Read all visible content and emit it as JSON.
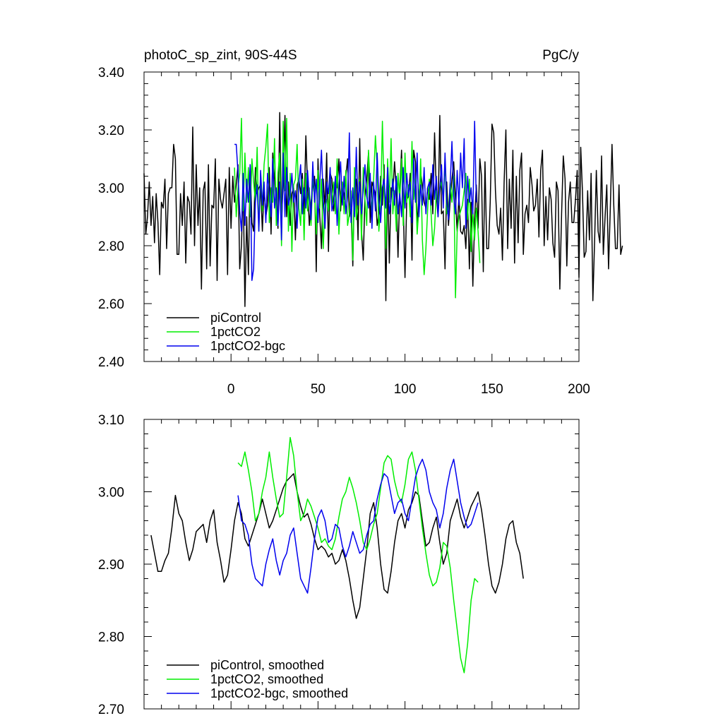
{
  "colors": {
    "piControl": "#000000",
    "1pctCO2": "#00ee00",
    "1pctCO2-bgc": "#0000ee"
  },
  "chart_data": [
    {
      "type": "line",
      "title": "photoC_sp_zint, 90S-44S",
      "units": "PgC/y",
      "xlim": [
        -50,
        200
      ],
      "ylim": [
        2.4,
        3.4
      ],
      "xticks": [
        0,
        50,
        100,
        150,
        200
      ],
      "yticks": [
        2.4,
        2.6,
        2.8,
        3.0,
        3.2,
        3.4
      ],
      "ytick_labels": [
        "2.40",
        "2.60",
        "2.80",
        "3.00",
        "3.20",
        "3.40"
      ],
      "legend_position": "bottom-left",
      "series": [
        {
          "name": "piControl",
          "x_start": -50,
          "x_step": 1,
          "values": [
            3.05,
            2.84,
            2.9,
            3.02,
            2.87,
            2.97,
            2.81,
            2.98,
            2.88,
            2.7,
            2.95,
            2.93,
            3.03,
            2.79,
            2.98,
            3.0,
            3.0,
            3.15,
            3.1,
            2.77,
            2.77,
            2.98,
            2.87,
            3.02,
            2.74,
            2.97,
            2.95,
            2.84,
            3.21,
            2.8,
            3.08,
            2.87,
            3.0,
            2.65,
            2.99,
            3.02,
            2.72,
            3.08,
            2.73,
            2.94,
            2.93,
            3.1,
            2.68,
            3.03,
            2.96,
            2.93,
            2.98,
            3.03,
            2.7,
            3.07,
            2.86,
            3.04,
            2.95,
            3.01,
            3.08,
            2.72,
            2.8,
            3.02,
            2.59,
            2.9,
            2.7,
            3.08,
            2.88,
            2.85,
            3.07,
            2.98,
            3.0,
            3.01,
            2.85,
            3.0,
            2.9,
            2.94,
            3.07,
            2.84,
            3.12,
            3.03,
            2.95,
            2.86,
            3.26,
            2.88,
            3.02,
            3.25,
            2.9,
            3.02,
            2.87,
            2.98,
            3.0,
            2.82,
            3.01,
            3.03,
            2.98,
            3.05,
            2.91,
            3.18,
            3.0,
            2.87,
            2.95,
            3.0,
            3.04,
            2.71,
            3.1,
            2.9,
            2.79,
            3.03,
            2.93,
            3.12,
            2.78,
            3.05,
            3.03,
            2.92,
            3.01,
            3.0,
            3.1,
            2.92,
            3.02,
            2.96,
            3.04,
            3.1,
            2.9,
            2.93,
            2.73,
            3.03,
            3.03,
            2.82,
            3.17,
            2.85,
            2.75,
            2.97,
            3.03,
            3.12,
            2.88,
            3.02,
            3.0,
            2.98,
            2.87,
            2.91,
            3.04,
            2.94,
            3.08,
            2.61,
            3.05,
            2.74,
            3.0,
            2.99,
            3.09,
            2.99,
            2.76,
            2.99,
            3.13,
            2.94,
            2.69,
            2.96,
            2.97,
            3.05,
            2.75,
            3.13,
            3.09,
            2.87,
            2.97,
            3.05,
            3.01,
            2.95,
            2.93,
            3.0,
            2.96,
            3.05,
            2.91,
            3.19,
            2.98,
            2.9,
            3.25,
            2.91,
            2.92,
            2.72,
            3.02,
            2.87,
            2.96,
            3.03,
            3.09,
            2.96,
            2.85,
            2.97,
            2.85,
            2.84,
            2.87,
            2.79,
            2.96,
            2.72,
            2.95,
            2.66,
            2.89,
            3.01,
            2.86,
            3.1,
            3.04,
            2.71,
            3.09,
            2.79,
            2.79,
            2.95,
            3.22,
            3.19,
            2.99,
            2.87,
            2.84,
            2.93,
            2.75,
            3.02,
            3.2,
            2.79,
            3.03,
            2.86,
            3.13,
            2.74,
            3.04,
            2.81,
            3.06,
            3.12,
            2.77,
            2.91,
            2.94,
            2.88,
            3.07,
            3.01,
            2.92,
            2.94,
            3.03,
            2.83,
            3.06,
            3.13,
            2.8,
            2.97,
            2.82,
            3.0,
            2.96,
            2.81,
            2.76,
            3.02,
            2.99,
            2.65,
            2.91,
            3.11,
            3.03,
            2.73,
            2.95,
            3.02,
            2.88,
            2.88,
            2.96,
            3.06,
            2.69,
            3.14,
            2.99,
            2.76,
            2.78,
            2.99,
            2.82,
            3.05,
            2.61,
            2.82,
            3.06,
            2.85,
            2.81,
            3.11,
            2.77,
            2.9,
            3.01,
            2.72,
            2.93,
            3.15,
            2.94,
            2.79,
            2.79,
            3.01,
            2.77,
            2.8
          ]
        },
        {
          "name": "1pctCO2",
          "x_start": 2,
          "x_step": 1,
          "values": [
            3.07,
            2.9,
            3.0,
            3.05,
            3.24,
            2.92,
            3.12,
            2.95,
            3.07,
            2.9,
            3.1,
            3.02,
            2.95,
            3.14,
            2.85,
            3.05,
            2.92,
            3.08,
            3.14,
            3.22,
            2.88,
            3.0,
            2.95,
            3.17,
            2.87,
            3.05,
            3.12,
            2.8,
            3.23,
            2.99,
            3.24,
            2.85,
            3.05,
            2.78,
            3.01,
            3.03,
            3.15,
            2.93,
            2.87,
            3.03,
            2.82,
            3.05,
            2.92,
            3.0,
            2.87,
            3.03,
            3.0,
            2.84,
            3.06,
            2.93,
            3.03,
            2.79,
            2.94,
            2.96,
            2.92,
            3.06,
            2.94,
            3.02,
            2.91,
            3.1,
            2.84,
            2.97,
            3.02,
            2.91,
            3.06,
            2.87,
            2.91,
            2.99,
            2.75,
            3.07,
            2.89,
            2.95,
            3.03,
            2.82,
            3.07,
            2.96,
            2.87,
            3.13,
            3.0,
            2.92,
            3.03,
            3.18,
            3.07,
            2.85,
            2.94,
            3.23,
            2.98,
            2.79,
            3.1,
            2.95,
            3.17,
            2.91,
            2.99,
            2.85,
            3.05,
            2.96,
            3.1,
            2.87,
            3.12,
            2.95,
            3.01,
            2.9,
            3.16,
            2.96,
            3.03,
            2.84,
            2.93,
            3.1,
            2.82,
            2.7,
            2.79,
            2.92,
            3.03,
            2.91,
            2.8,
            2.86,
            2.99,
            2.94,
            3.0,
            3.02,
            2.96,
            3.09,
            2.91,
            2.93,
            3.02,
            2.95,
            3.04,
            2.62,
            2.85,
            2.9,
            2.92,
            2.94,
            2.99,
            3.05,
            2.89,
            3.03,
            2.78,
            2.92,
            2.82,
            2.93,
            2.85,
            2.74
          ]
        },
        {
          "name": "1pctCO2-bgc",
          "x_start": 2,
          "x_step": 1,
          "values": [
            3.15,
            3.15,
            3.05,
            2.92,
            2.85,
            3.05,
            2.87,
            3.03,
            2.95,
            3.08,
            2.68,
            2.72,
            2.95,
            3.01,
            2.85,
            3.06,
            2.94,
            3.02,
            2.88,
            3.05,
            2.98,
            2.9,
            3.1,
            2.93,
            3.0,
            2.87,
            3.02,
            2.82,
            3.12,
            2.9,
            3.07,
            2.94,
            2.97,
            3.05,
            2.95,
            2.99,
            2.86,
            3.02,
            3.08,
            2.91,
            3.0,
            2.93,
            3.06,
            2.97,
            2.89,
            3.09,
            2.95,
            3.03,
            2.88,
            3.02,
            3.13,
            2.96,
            2.86,
            3.02,
            2.98,
            3.07,
            2.92,
            2.95,
            3.04,
            2.87,
            3.01,
            3.09,
            2.94,
            3.04,
            2.91,
            2.97,
            3.19,
            2.88,
            3.0,
            2.9,
            3.14,
            2.94,
            3.02,
            2.91,
            3.0,
            3.08,
            2.97,
            2.93,
            3.05,
            2.86,
            3.02,
            2.92,
            3.12,
            2.96,
            2.88,
            3.0,
            3.03,
            2.93,
            3.07,
            2.91,
            2.96,
            3.03,
            2.94,
            3.04,
            2.91,
            2.98,
            2.9,
            3.07,
            2.93,
            3.05,
            2.97,
            3.02,
            2.88,
            3.1,
            2.95,
            3.12,
            2.9,
            3.01,
            2.94,
            3.07,
            2.91,
            3.0,
            3.02,
            2.94,
            3.08,
            2.96,
            3.04,
            2.9,
            3.0,
            3.08,
            2.93,
            3.12,
            2.95,
            2.89,
            3.02,
            3.16,
            2.97,
            2.91,
            3.06,
            2.94,
            3.12,
            3.0,
            3.17,
            2.86,
            3.04,
            2.95,
            3.0,
            2.91,
            3.23,
            2.95
          ]
        }
      ]
    },
    {
      "type": "line",
      "title": "",
      "xlim": [
        -50,
        200
      ],
      "ylim": [
        2.7,
        3.1
      ],
      "xticks": [
        0,
        50,
        100,
        150,
        200
      ],
      "yticks": [
        2.7,
        2.8,
        2.9,
        3.0,
        3.1
      ],
      "ytick_labels": [
        "2.70",
        "2.80",
        "2.90",
        "3.00",
        "3.10"
      ],
      "legend_position": "bottom-left",
      "series": [
        {
          "name": "piControl, smoothed",
          "x_start": -46,
          "x_step": 2,
          "values": [
            2.94,
            2.915,
            2.89,
            2.89,
            2.905,
            2.915,
            2.95,
            2.995,
            2.97,
            2.96,
            2.93,
            2.905,
            2.92,
            2.945,
            2.95,
            2.955,
            2.93,
            2.96,
            2.975,
            2.93,
            2.905,
            2.875,
            2.885,
            2.92,
            2.96,
            2.985,
            2.97,
            2.935,
            2.925,
            2.94,
            2.955,
            2.97,
            2.99,
            2.97,
            2.95,
            2.96,
            2.975,
            2.99,
            3.005,
            3.015,
            3.02,
            3.025,
            3.0,
            2.98,
            2.965,
            2.97,
            2.955,
            2.935,
            2.92,
            2.925,
            2.92,
            2.91,
            2.915,
            2.9,
            2.905,
            2.92,
            2.905,
            2.88,
            2.85,
            2.825,
            2.84,
            2.88,
            2.92,
            2.97,
            2.985,
            2.95,
            2.9,
            2.865,
            2.86,
            2.89,
            2.93,
            2.96,
            2.97,
            2.95,
            2.975,
            2.985,
            3.0,
            2.995,
            2.96,
            2.925,
            2.93,
            2.95,
            2.965,
            2.93,
            2.9,
            2.915,
            2.96,
            2.975,
            2.99,
            2.965,
            2.95,
            2.965,
            2.98,
            2.99,
            3.0,
            2.975,
            2.94,
            2.9,
            2.87,
            2.86,
            2.875,
            2.9,
            2.935,
            2.955,
            2.96,
            2.93,
            2.915,
            2.88
          ]
        },
        {
          "name": "1pctCO2, smoothed",
          "x_start": 4,
          "x_step": 2,
          "values": [
            3.04,
            3.035,
            3.055,
            3.03,
            3.0,
            2.96,
            2.97,
            3.0,
            3.02,
            3.055,
            3.02,
            2.99,
            2.965,
            2.97,
            3.02,
            3.075,
            3.05,
            3.0,
            2.96,
            2.97,
            2.99,
            2.98,
            2.965,
            2.95,
            2.93,
            2.935,
            2.925,
            2.92,
            2.935,
            2.965,
            2.99,
            3.0,
            3.02,
            3.005,
            2.985,
            2.96,
            2.93,
            2.92,
            2.935,
            2.955,
            2.97,
            3.005,
            3.04,
            3.05,
            3.045,
            3.015,
            2.995,
            2.985,
            3.01,
            3.045,
            3.055,
            3.03,
            2.99,
            2.95,
            2.915,
            2.885,
            2.87,
            2.875,
            2.895,
            2.93,
            2.925,
            2.895,
            2.85,
            2.81,
            2.77,
            2.75,
            2.79,
            2.85,
            2.88,
            2.875
          ]
        },
        {
          "name": "1pctCO2-bgc, smoothed",
          "x_start": 4,
          "x_step": 2,
          "values": [
            2.995,
            2.96,
            2.955,
            2.94,
            2.9,
            2.88,
            2.875,
            2.87,
            2.9,
            2.92,
            2.935,
            2.905,
            2.885,
            2.905,
            2.915,
            2.94,
            2.95,
            2.915,
            2.88,
            2.87,
            2.86,
            2.895,
            2.935,
            2.965,
            2.975,
            2.96,
            2.93,
            2.935,
            2.955,
            2.95,
            2.925,
            2.91,
            2.925,
            2.945,
            2.93,
            2.915,
            2.92,
            2.94,
            2.955,
            2.96,
            2.99,
            3.01,
            3.025,
            3.02,
            2.995,
            2.97,
            2.985,
            2.99,
            2.97,
            2.96,
            2.99,
            3.02,
            3.035,
            3.045,
            3.03,
            3.0,
            2.985,
            2.975,
            2.95,
            2.97,
            3.005,
            3.03,
            3.045,
            3.015,
            2.985,
            2.965,
            2.95,
            2.955,
            2.97,
            2.985
          ]
        }
      ]
    }
  ]
}
